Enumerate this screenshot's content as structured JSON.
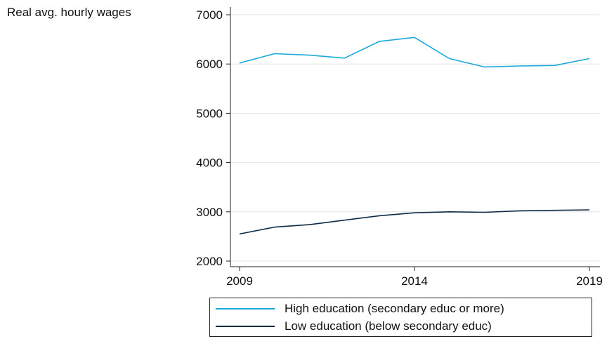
{
  "chart_data": {
    "type": "line",
    "ylabel": "Real avg. hourly wages",
    "xlabel": "",
    "x": [
      2009,
      2010,
      2011,
      2012,
      2013,
      2014,
      2015,
      2016,
      2017,
      2018,
      2019
    ],
    "xticks": [
      2009,
      2014,
      2019
    ],
    "yticks": [
      2000,
      3000,
      4000,
      5000,
      6000,
      7000
    ],
    "ylim": [
      2000,
      7000
    ],
    "xlim": [
      2009,
      2019
    ],
    "grid": "horizontal",
    "legend_position": "bottom",
    "series": [
      {
        "name": "High education (secondary educ or more)",
        "color": "#1ba9dc",
        "values": [
          6020,
          6210,
          6180,
          6120,
          6460,
          6540,
          6110,
          5940,
          5960,
          5970,
          6110
        ]
      },
      {
        "name": "Low education (below secondary educ)",
        "color": "#0f2a44",
        "values": [
          2550,
          2690,
          2740,
          2830,
          2920,
          2980,
          3000,
          2990,
          3020,
          3030,
          3040
        ]
      }
    ]
  }
}
